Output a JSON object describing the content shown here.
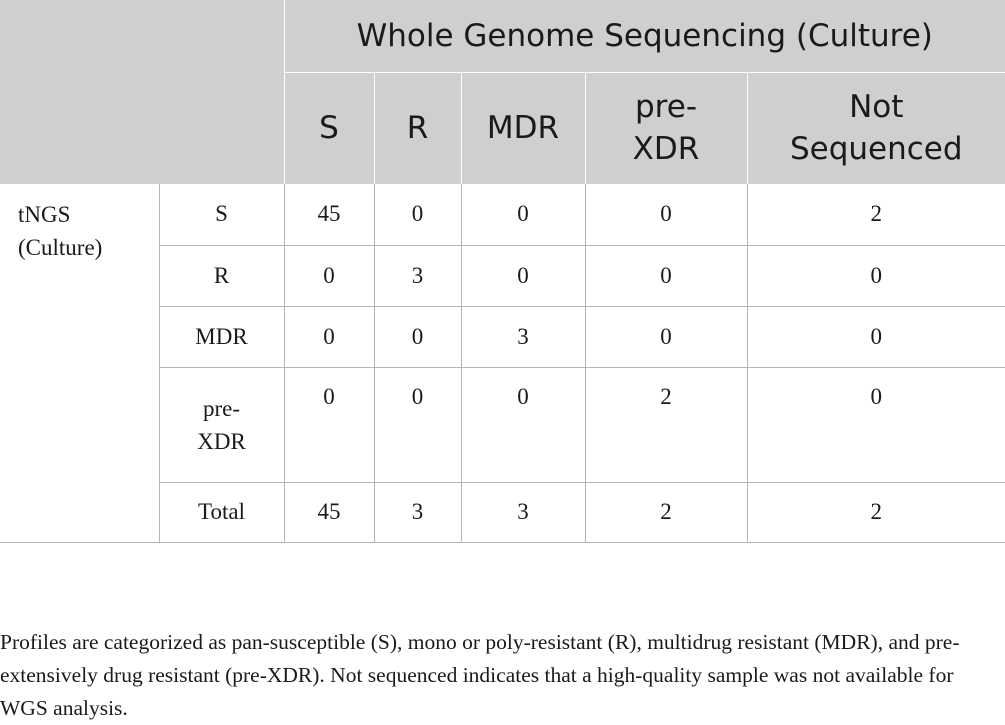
{
  "table": {
    "group_header": "Whole Genome Sequencing (Culture)",
    "column_headers": [
      "S",
      "R",
      "MDR",
      "pre-\nXDR",
      "Not\nSequenced"
    ],
    "row_group": "tNGS\n(Culture)",
    "rows": [
      {
        "label": "S",
        "values": [
          "45",
          "0",
          "0",
          "0",
          "2"
        ]
      },
      {
        "label": "R",
        "values": [
          "0",
          "3",
          "0",
          "0",
          "0"
        ]
      },
      {
        "label": "MDR",
        "values": [
          "0",
          "0",
          "3",
          "0",
          "0"
        ]
      },
      {
        "label": "pre-\nXDR",
        "values": [
          "0",
          "0",
          "0",
          "2",
          "0"
        ]
      },
      {
        "label": "Total",
        "values": [
          "45",
          "3",
          "3",
          "2",
          "2"
        ]
      }
    ]
  },
  "footnote": "Profiles are categorized as pan-susceptible (S), mono or poly-resistant (R), multidrug resistant (MDR), and pre-extensively drug resistant (pre-XDR). Not sequenced indicates that a high-quality sample was not available for WGS analysis."
}
